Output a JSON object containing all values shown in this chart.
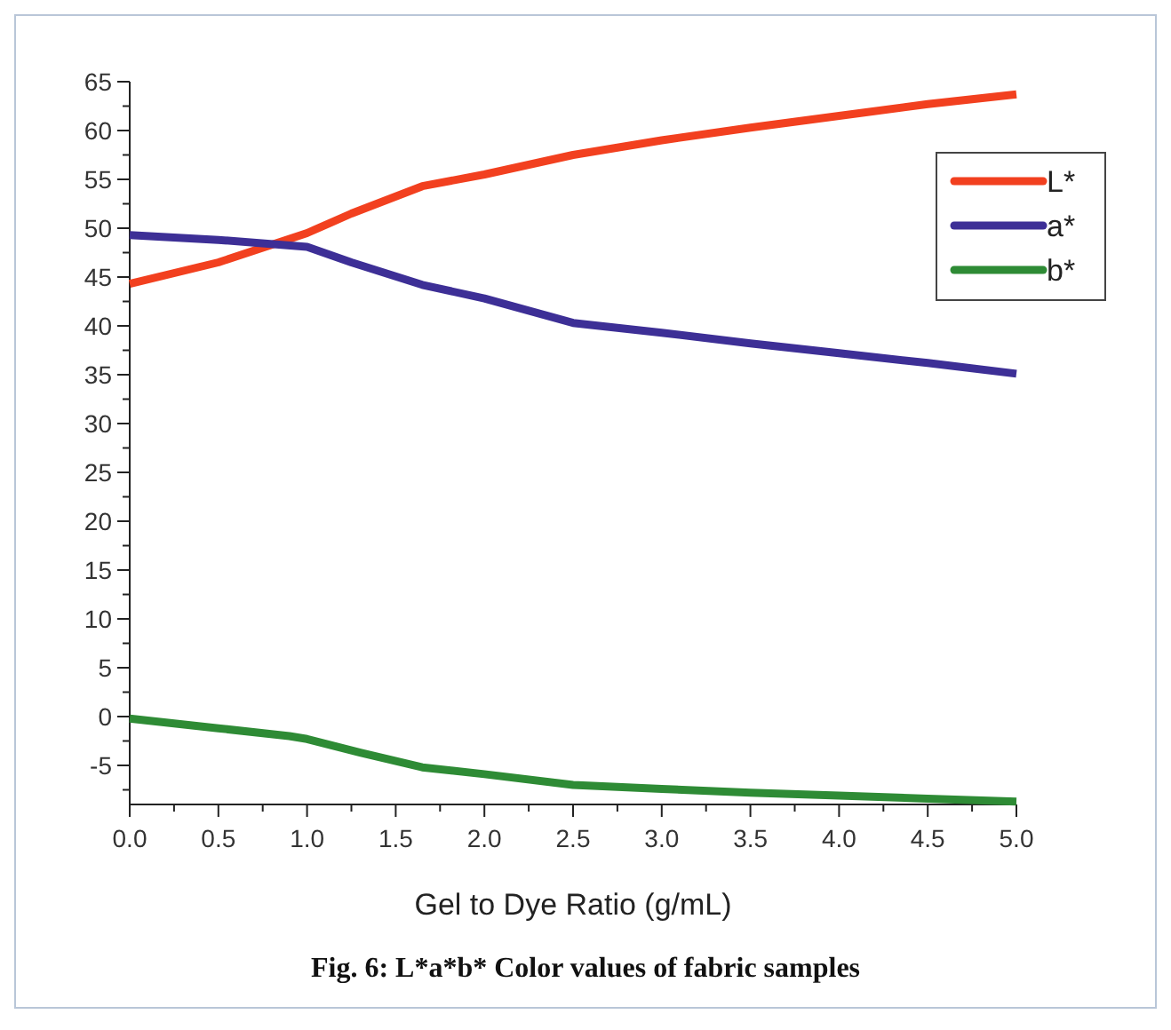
{
  "chart_data": {
    "type": "line",
    "xlabel": "Gel to Dye Ratio (g/mL)",
    "annotations": [
      "Fig. 6: L*a*b* Color values of fabric samples"
    ],
    "xlim": [
      0,
      5
    ],
    "ylim": [
      -9,
      65
    ],
    "xticks": [
      {
        "value": 0,
        "label": "0.0"
      },
      {
        "value": 0.25,
        "label": null
      },
      {
        "value": 0.5,
        "label": "0.5"
      },
      {
        "value": 0.75,
        "label": null
      },
      {
        "value": 1,
        "label": "1.0"
      },
      {
        "value": 1.25,
        "label": null
      },
      {
        "value": 1.5,
        "label": "1.5"
      },
      {
        "value": 1.75,
        "label": null
      },
      {
        "value": 2,
        "label": "2.0"
      },
      {
        "value": 2.25,
        "label": null
      },
      {
        "value": 2.5,
        "label": "2.5"
      },
      {
        "value": 2.75,
        "label": null
      },
      {
        "value": 3,
        "label": "3.0"
      },
      {
        "value": 3.25,
        "label": null
      },
      {
        "value": 3.5,
        "label": "3.5"
      },
      {
        "value": 3.75,
        "label": null
      },
      {
        "value": 4,
        "label": "4.0"
      },
      {
        "value": 4.25,
        "label": null
      },
      {
        "value": 4.5,
        "label": "4.5"
      },
      {
        "value": 4.75,
        "label": null
      },
      {
        "value": 5,
        "label": "5.0"
      }
    ],
    "yticks": [
      {
        "value": -7.5,
        "label": null
      },
      -5,
      {
        "value": -2.5,
        "label": null
      },
      0,
      {
        "value": 2.5,
        "label": null
      },
      5,
      {
        "value": 7.5,
        "label": null
      },
      10,
      {
        "value": 12.5,
        "label": null
      },
      15,
      {
        "value": 17.5,
        "label": null
      },
      20,
      {
        "value": 22.5,
        "label": null
      },
      25,
      {
        "value": 27.5,
        "label": null
      },
      30,
      {
        "value": 32.5,
        "label": null
      },
      35,
      {
        "value": 37.5,
        "label": null
      },
      40,
      {
        "value": 42.5,
        "label": null
      },
      45,
      {
        "value": 47.5,
        "label": null
      },
      50,
      {
        "value": 52.5,
        "label": null
      },
      55,
      {
        "value": 57.5,
        "label": null
      },
      60,
      {
        "value": 62.5,
        "label": null
      },
      65
    ],
    "legend": "right",
    "grid": false,
    "marker": "none",
    "line_style": "solid",
    "series": [
      {
        "name": "L*",
        "color": "#f2401f",
        "x": [
          0,
          0.5,
          1,
          1.25,
          1.65,
          2,
          2.5,
          3,
          3.5,
          4,
          4.5,
          5
        ],
        "values": [
          44.3,
          46.5,
          49.5,
          51.5,
          54.3,
          55.5,
          57.5,
          59,
          60.3,
          61.5,
          62.7,
          63.7
        ]
      },
      {
        "name": "a*",
        "color": "#3d2f96",
        "x": [
          0,
          0.5,
          1,
          1.25,
          1.65,
          2,
          2.5,
          3,
          3.5,
          4,
          4.5,
          5
        ],
        "values": [
          49.3,
          48.8,
          48.1,
          46.5,
          44.2,
          42.8,
          40.3,
          39.3,
          38.2,
          37.2,
          36.2,
          35.1
        ]
      },
      {
        "name": "b*",
        "color": "#2e8b35",
        "x": [
          0,
          0.5,
          0.9,
          1,
          1.3,
          1.65,
          2,
          2.5,
          3,
          3.5,
          4,
          4.5,
          5
        ],
        "values": [
          -0.2,
          -1.2,
          -2,
          -2.3,
          -3.7,
          -5.2,
          -5.9,
          -7,
          -7.4,
          -7.8,
          -8.1,
          -8.4,
          -8.7
        ]
      }
    ]
  }
}
